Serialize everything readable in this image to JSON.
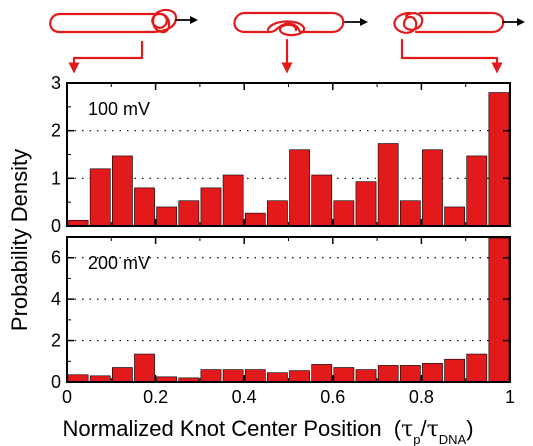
{
  "chart_data": [
    {
      "type": "bar",
      "annotation": "100 mV",
      "xlim": [
        0,
        1
      ],
      "ylim": [
        0,
        3
      ],
      "x_ticks": [
        "0",
        "0.2",
        "0.4",
        "0.6",
        "0.8",
        "1"
      ],
      "y_ticks": [
        "0",
        "1",
        "2",
        "3"
      ],
      "grid": "horizontal dotted",
      "bin_width": 0.05,
      "bin_left_edges": [
        0,
        0.05,
        0.1,
        0.15,
        0.2,
        0.25,
        0.3,
        0.35,
        0.4,
        0.45,
        0.5,
        0.55,
        0.6,
        0.65,
        0.7,
        0.75,
        0.8,
        0.85,
        0.9,
        0.95
      ],
      "values": [
        0.12,
        1.2,
        1.47,
        0.8,
        0.4,
        0.53,
        0.8,
        1.07,
        0.27,
        0.53,
        1.6,
        1.07,
        0.53,
        0.93,
        1.73,
        0.53,
        1.6,
        0.4,
        1.47,
        2.8
      ]
    },
    {
      "type": "bar",
      "annotation": "200 mV",
      "xlim": [
        0,
        1
      ],
      "ylim": [
        0,
        7
      ],
      "x_ticks": [
        "0",
        "0.2",
        "0.4",
        "0.6",
        "0.8",
        "1"
      ],
      "y_ticks": [
        "0",
        "2",
        "4",
        "6"
      ],
      "grid": "horizontal dotted",
      "bin_width": 0.05,
      "bin_left_edges": [
        0,
        0.05,
        0.1,
        0.15,
        0.2,
        0.25,
        0.3,
        0.35,
        0.4,
        0.45,
        0.5,
        0.55,
        0.6,
        0.65,
        0.7,
        0.75,
        0.8,
        0.85,
        0.9,
        0.95
      ],
      "values": [
        0.35,
        0.3,
        0.7,
        1.35,
        0.25,
        0.2,
        0.6,
        0.6,
        0.6,
        0.45,
        0.55,
        0.85,
        0.7,
        0.6,
        0.8,
        0.8,
        0.9,
        1.1,
        1.35,
        6.95
      ]
    }
  ],
  "labels": {
    "xlabel": "Normalized Knot Center Position",
    "xlabel_tau": "τ",
    "xlabel_sub1": "p",
    "xlabel_slash": "/",
    "xlabel_sub2": "DNA",
    "ylabel": "Probability Density"
  },
  "colors": {
    "bar": "#e31a1c",
    "knot": "#e31a1c",
    "arrow": "#000000",
    "axis": "#000000"
  },
  "knot_icons": [
    {
      "name": "knot-end-icon",
      "points_to_x": 0
    },
    {
      "name": "knot-middle-icon",
      "points_to_x": 0.5
    },
    {
      "name": "knot-start-icon",
      "points_to_x": 1
    }
  ]
}
